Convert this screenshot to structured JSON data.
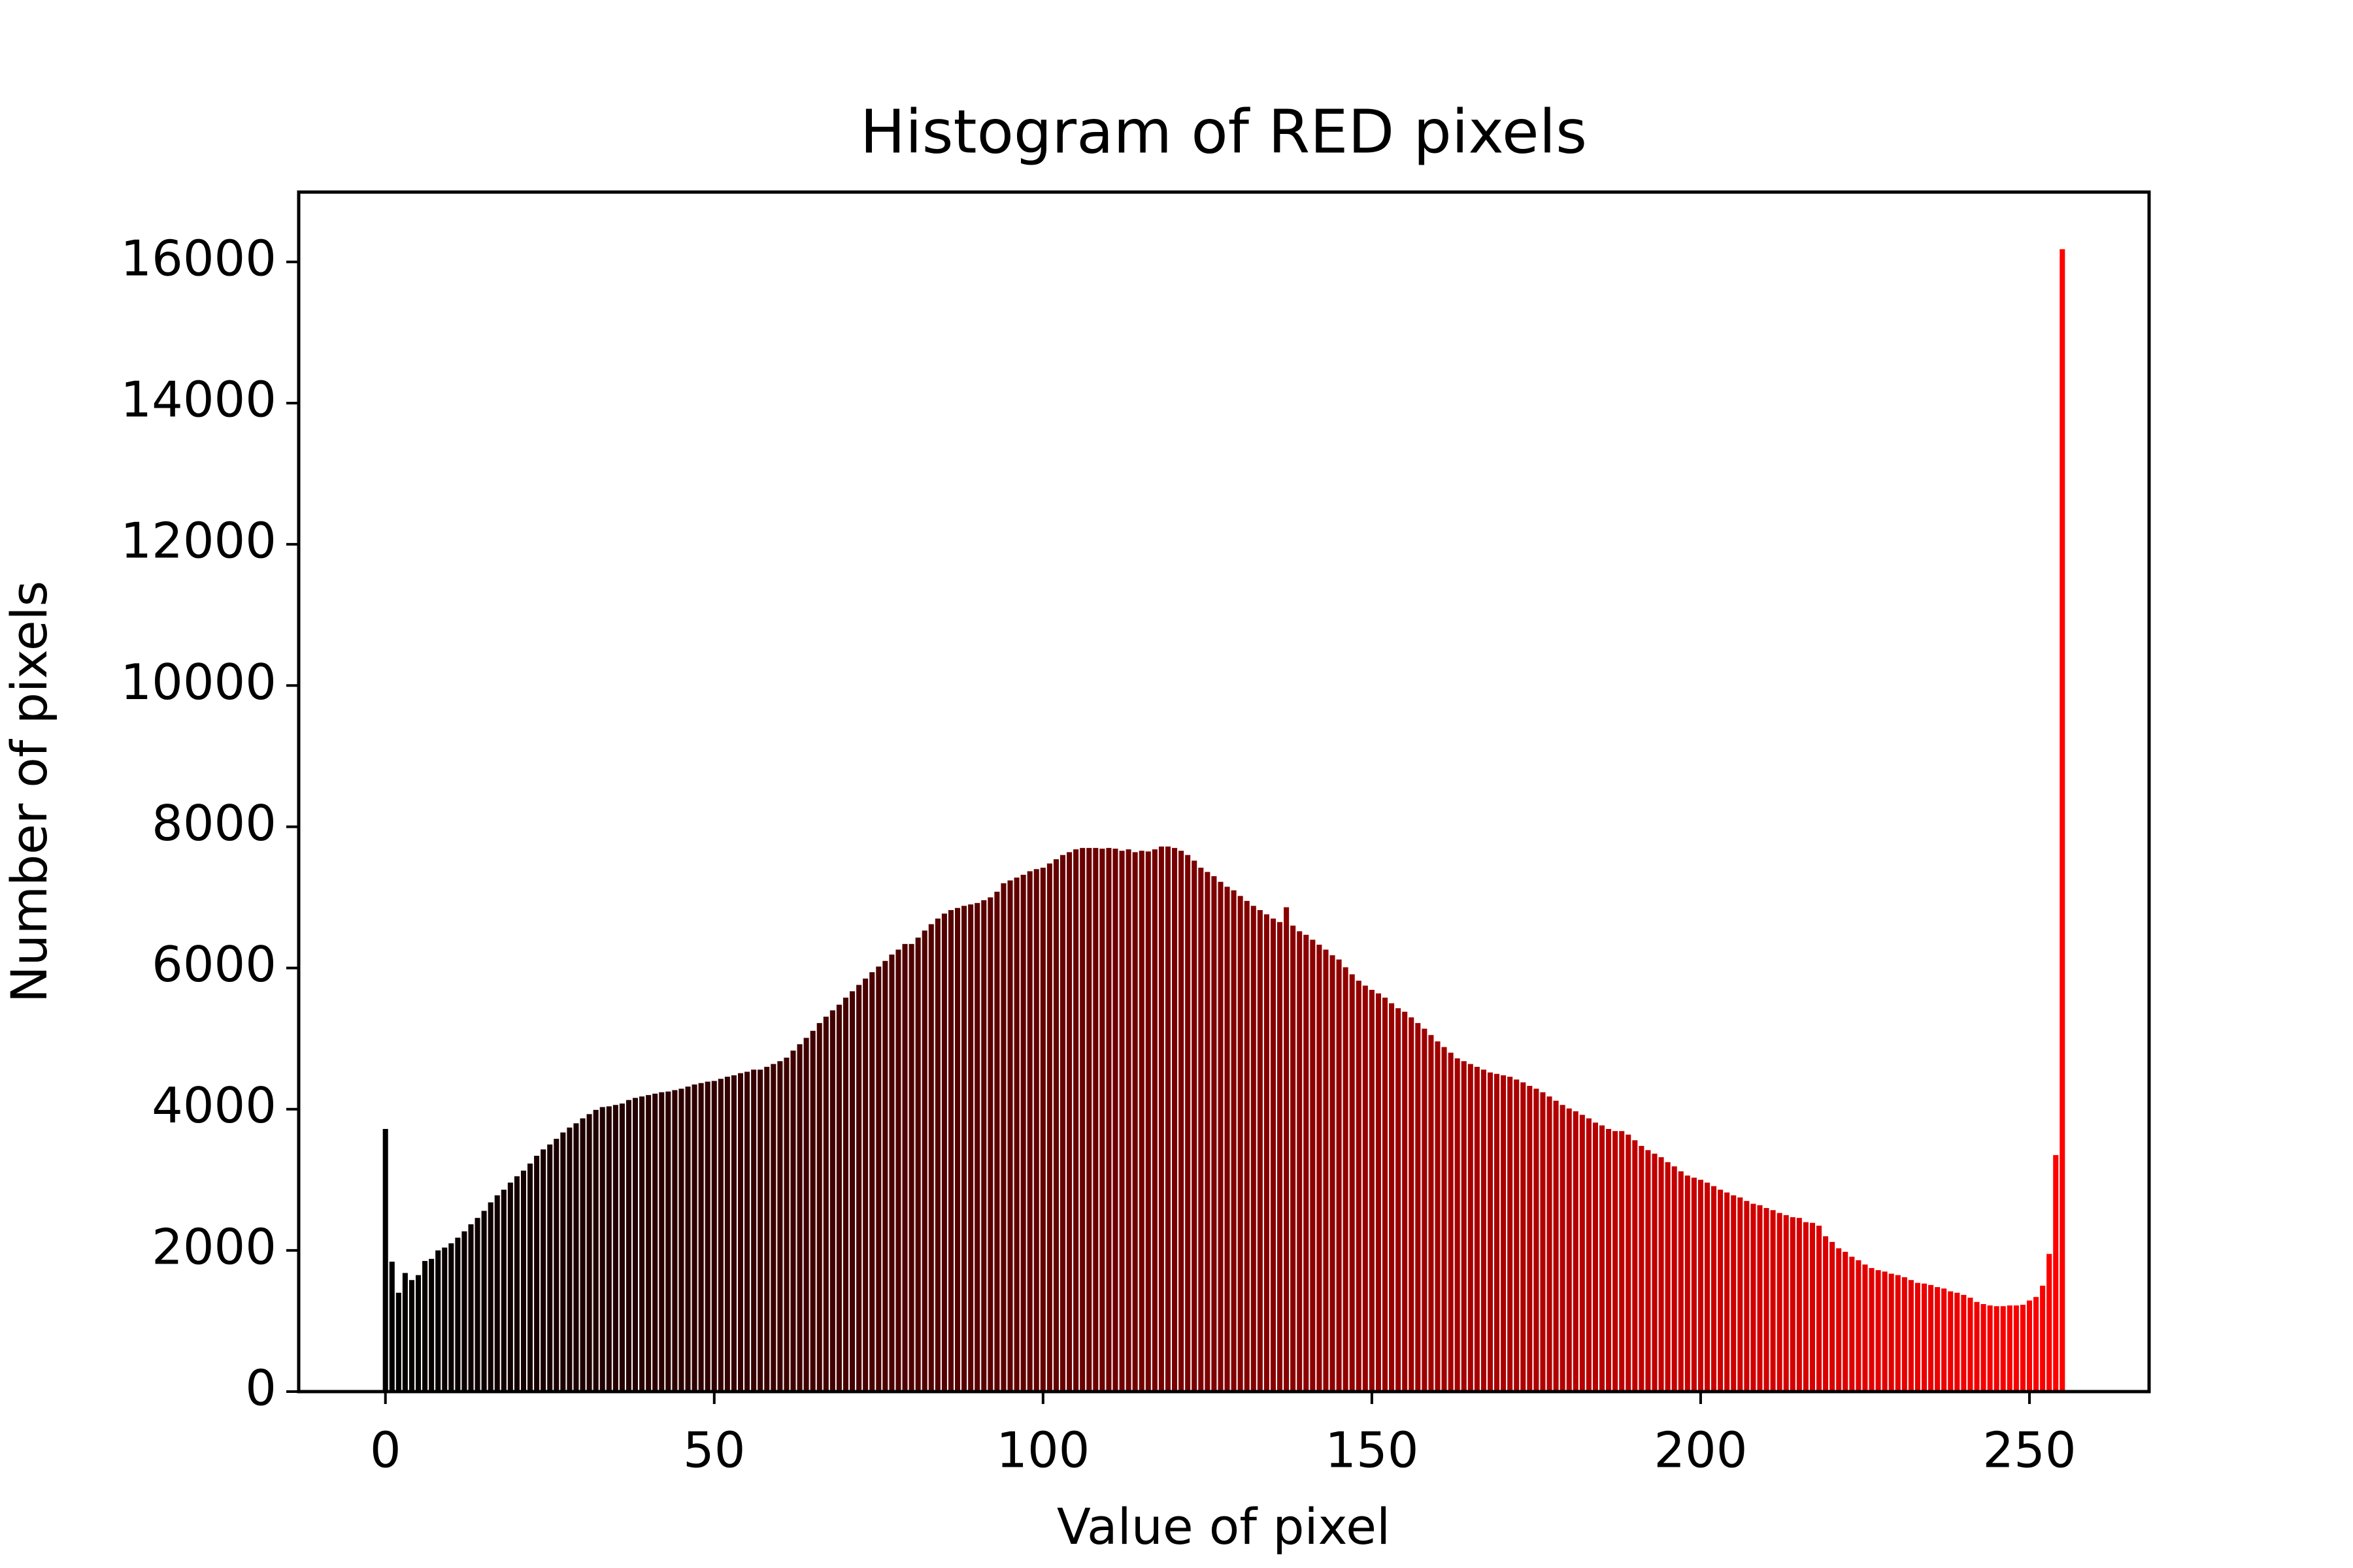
{
  "chart_data": {
    "type": "bar",
    "title": "Histogram of RED pixels",
    "x_label": "Value of pixel",
    "y_label": "Number of pixels",
    "colors": [
      "#000000",
      "#ff0000"
    ],
    "x": [
      0,
      1,
      2,
      3,
      4,
      5,
      6,
      7,
      8,
      9,
      10,
      11,
      12,
      13,
      14,
      15,
      16,
      17,
      18,
      19,
      20,
      21,
      22,
      23,
      24,
      25,
      26,
      27,
      28,
      29,
      30,
      31,
      32,
      33,
      34,
      35,
      36,
      37,
      38,
      39,
      40,
      41,
      42,
      43,
      44,
      45,
      46,
      47,
      48,
      49,
      50,
      51,
      52,
      53,
      54,
      55,
      56,
      57,
      58,
      59,
      60,
      61,
      62,
      63,
      64,
      65,
      66,
      67,
      68,
      69,
      70,
      71,
      72,
      73,
      74,
      75,
      76,
      77,
      78,
      79,
      80,
      81,
      82,
      83,
      84,
      85,
      86,
      87,
      88,
      89,
      90,
      91,
      92,
      93,
      94,
      95,
      96,
      97,
      98,
      99,
      100,
      101,
      102,
      103,
      104,
      105,
      106,
      107,
      108,
      109,
      110,
      111,
      112,
      113,
      114,
      115,
      116,
      117,
      118,
      119,
      120,
      121,
      122,
      123,
      124,
      125,
      126,
      127,
      128,
      129,
      130,
      131,
      132,
      133,
      134,
      135,
      136,
      137,
      138,
      139,
      140,
      141,
      142,
      143,
      144,
      145,
      146,
      147,
      148,
      149,
      150,
      151,
      152,
      153,
      154,
      155,
      156,
      157,
      158,
      159,
      160,
      161,
      162,
      163,
      164,
      165,
      166,
      167,
      168,
      169,
      170,
      171,
      172,
      173,
      174,
      175,
      176,
      177,
      178,
      179,
      180,
      181,
      182,
      183,
      184,
      185,
      186,
      187,
      188,
      189,
      190,
      191,
      192,
      193,
      194,
      195,
      196,
      197,
      198,
      199,
      200,
      201,
      202,
      203,
      204,
      205,
      206,
      207,
      208,
      209,
      210,
      211,
      212,
      213,
      214,
      215,
      216,
      217,
      218,
      219,
      220,
      221,
      222,
      223,
      224,
      225,
      226,
      227,
      228,
      229,
      230,
      231,
      232,
      233,
      234,
      235,
      236,
      237,
      238,
      239,
      240,
      241,
      242,
      243,
      244,
      245,
      246,
      247,
      248,
      249,
      250,
      251,
      252,
      253,
      254,
      255
    ],
    "values": [
      3720,
      1840,
      1400,
      1680,
      1580,
      1650,
      1850,
      1880,
      2000,
      2040,
      2100,
      2180,
      2270,
      2370,
      2460,
      2560,
      2680,
      2780,
      2860,
      2960,
      3050,
      3130,
      3230,
      3340,
      3430,
      3500,
      3580,
      3670,
      3740,
      3800,
      3870,
      3930,
      3990,
      4030,
      4040,
      4060,
      4080,
      4130,
      4160,
      4180,
      4200,
      4220,
      4240,
      4250,
      4270,
      4290,
      4320,
      4350,
      4370,
      4390,
      4400,
      4430,
      4460,
      4480,
      4510,
      4530,
      4560,
      4560,
      4600,
      4640,
      4680,
      4730,
      4830,
      4920,
      5010,
      5110,
      5220,
      5310,
      5400,
      5480,
      5580,
      5670,
      5760,
      5850,
      5940,
      6020,
      6100,
      6190,
      6260,
      6340,
      6340,
      6430,
      6530,
      6620,
      6700,
      6770,
      6820,
      6850,
      6880,
      6900,
      6920,
      6960,
      7000,
      7080,
      7200,
      7240,
      7280,
      7320,
      7370,
      7400,
      7420,
      7480,
      7540,
      7600,
      7640,
      7680,
      7700,
      7700,
      7700,
      7690,
      7700,
      7690,
      7660,
      7680,
      7640,
      7660,
      7650,
      7680,
      7720,
      7720,
      7700,
      7660,
      7600,
      7520,
      7420,
      7360,
      7300,
      7220,
      7150,
      7100,
      7020,
      6950,
      6880,
      6820,
      6760,
      6700,
      6650,
      6860,
      6600,
      6520,
      6470,
      6400,
      6330,
      6260,
      6180,
      6120,
      6010,
      5910,
      5820,
      5750,
      5690,
      5640,
      5580,
      5500,
      5430,
      5380,
      5300,
      5220,
      5140,
      5050,
      4960,
      4880,
      4800,
      4720,
      4680,
      4640,
      4600,
      4560,
      4520,
      4500,
      4480,
      4460,
      4420,
      4380,
      4330,
      4290,
      4240,
      4180,
      4120,
      4060,
      4010,
      3970,
      3920,
      3870,
      3810,
      3770,
      3720,
      3690,
      3690,
      3640,
      3560,
      3480,
      3420,
      3370,
      3320,
      3250,
      3190,
      3120,
      3060,
      3030,
      3000,
      2960,
      2910,
      2860,
      2820,
      2780,
      2750,
      2700,
      2660,
      2640,
      2600,
      2570,
      2530,
      2500,
      2470,
      2460,
      2400,
      2390,
      2350,
      2200,
      2120,
      2030,
      1980,
      1910,
      1860,
      1800,
      1750,
      1720,
      1700,
      1670,
      1650,
      1620,
      1580,
      1540,
      1530,
      1510,
      1480,
      1460,
      1420,
      1400,
      1370,
      1330,
      1270,
      1240,
      1220,
      1210,
      1210,
      1220,
      1220,
      1230,
      1290,
      1340,
      1500,
      1950,
      3350,
      16180
    ],
    "xlim": [
      -13.19,
      268.19
    ],
    "ylim": [
      0,
      16989
    ],
    "xticks": [
      0,
      50,
      100,
      150,
      200,
      250
    ],
    "yticks": [
      0,
      2000,
      4000,
      6000,
      8000,
      10000,
      12000,
      14000,
      16000
    ],
    "grid": false
  }
}
